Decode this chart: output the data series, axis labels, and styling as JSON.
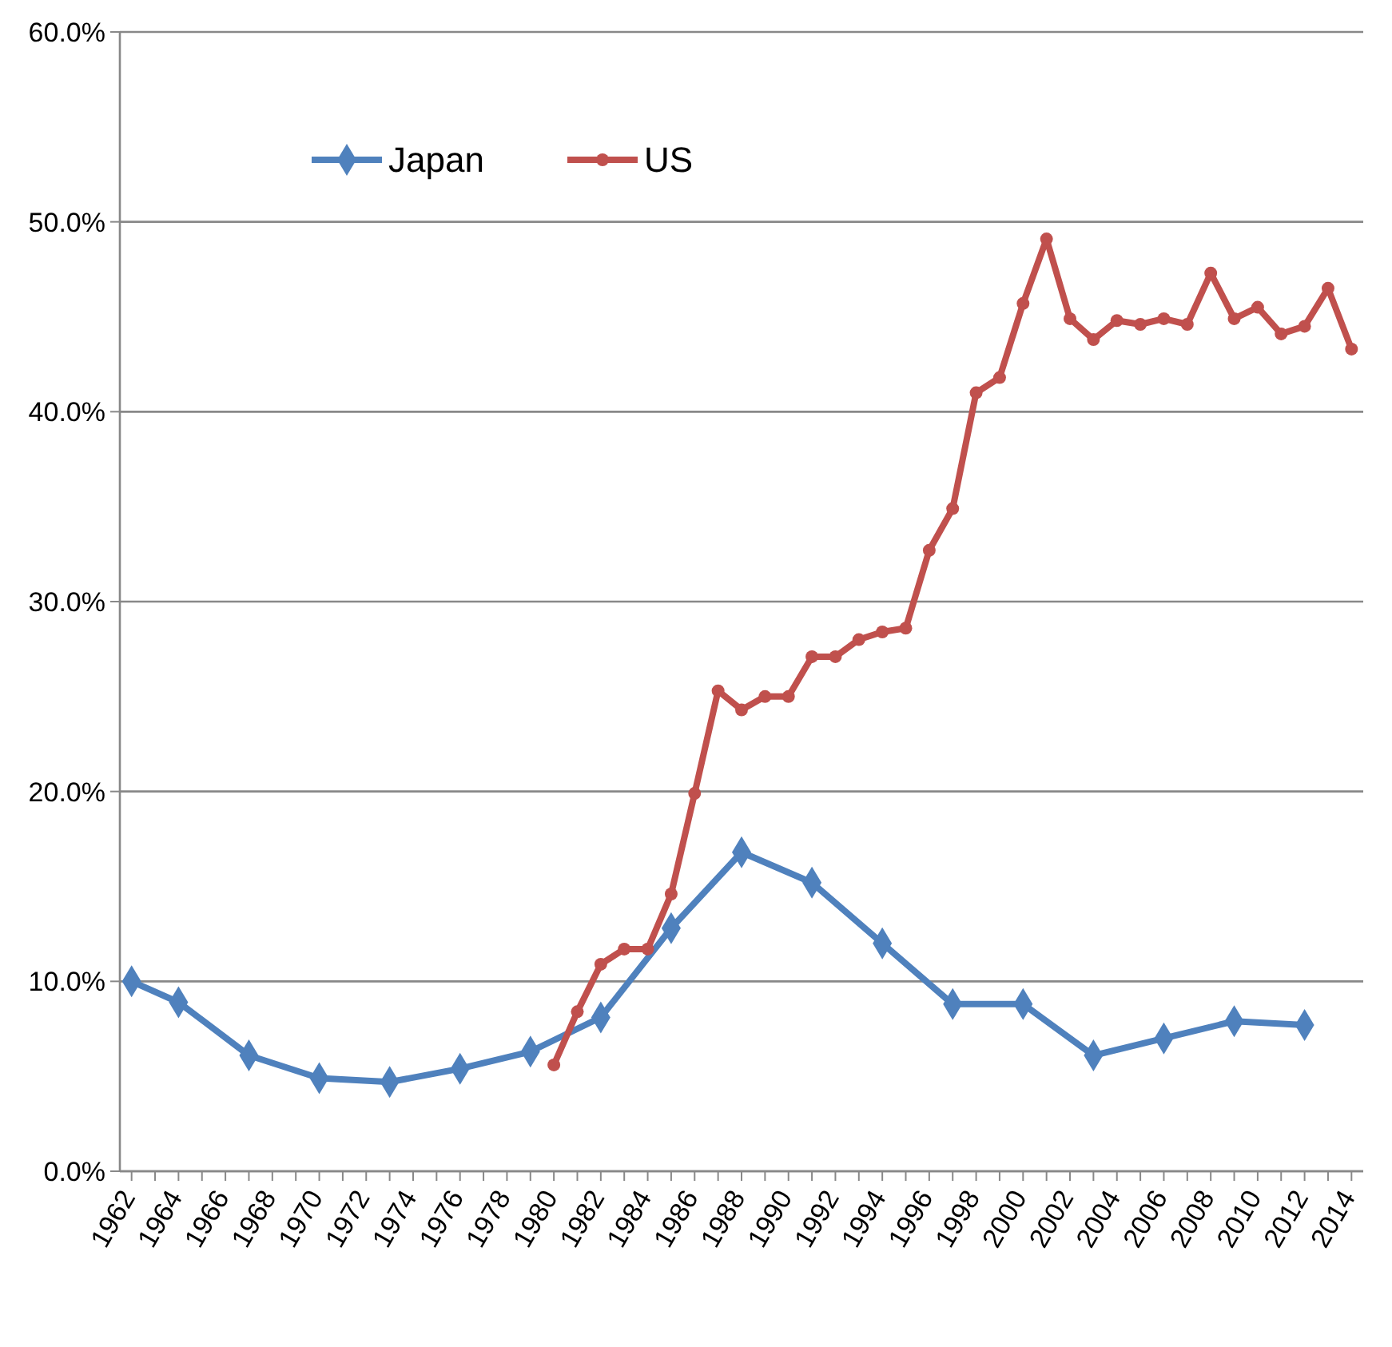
{
  "chart_data": {
    "type": "line",
    "xlim": [
      1961.5,
      2014.5
    ],
    "ylim": [
      0,
      60
    ],
    "xticks": [
      1962,
      {
        "value": 1963,
        "label": null
      },
      1964,
      {
        "value": 1965,
        "label": null
      },
      1966,
      {
        "value": 1967,
        "label": null
      },
      1968,
      {
        "value": 1969,
        "label": null
      },
      1970,
      {
        "value": 1971,
        "label": null
      },
      1972,
      {
        "value": 1973,
        "label": null
      },
      1974,
      {
        "value": 1975,
        "label": null
      },
      1976,
      {
        "value": 1977,
        "label": null
      },
      1978,
      {
        "value": 1979,
        "label": null
      },
      1980,
      {
        "value": 1981,
        "label": null
      },
      1982,
      {
        "value": 1983,
        "label": null
      },
      1984,
      {
        "value": 1985,
        "label": null
      },
      1986,
      {
        "value": 1987,
        "label": null
      },
      1988,
      {
        "value": 1989,
        "label": null
      },
      1990,
      {
        "value": 1991,
        "label": null
      },
      1992,
      {
        "value": 1993,
        "label": null
      },
      1994,
      {
        "value": 1995,
        "label": null
      },
      1996,
      {
        "value": 1997,
        "label": null
      },
      1998,
      {
        "value": 1999,
        "label": null
      },
      2000,
      {
        "value": 2001,
        "label": null
      },
      2002,
      {
        "value": 2003,
        "label": null
      },
      2004,
      {
        "value": 2005,
        "label": null
      },
      2006,
      {
        "value": 2007,
        "label": null
      },
      2008,
      {
        "value": 2009,
        "label": null
      },
      2010,
      {
        "value": 2011,
        "label": null
      },
      2012,
      {
        "value": 2013,
        "label": null
      },
      2014
    ],
    "yticks": [
      {
        "value": 0,
        "label": "0.0%"
      },
      {
        "value": 10,
        "label": "10.0%"
      },
      {
        "value": 20,
        "label": "20.0%"
      },
      {
        "value": 30,
        "label": "30.0%"
      },
      {
        "value": 40,
        "label": "40.0%"
      },
      {
        "value": 50,
        "label": "50.0%"
      },
      {
        "value": 60,
        "label": "60.0%"
      }
    ],
    "grid": "y",
    "legend": "top left",
    "line_style": "solid",
    "series": [
      {
        "name": "Japan",
        "color": "#4f81bd",
        "marker": "diamond",
        "x": [
          1962,
          1964,
          1967,
          1970,
          1973,
          1976,
          1979,
          1982,
          1985,
          1988,
          1991,
          1994,
          1997,
          2000,
          2003,
          2006,
          2009,
          2012
        ],
        "values": [
          10.0,
          8.9,
          6.1,
          4.9,
          4.7,
          5.4,
          6.3,
          8.1,
          12.8,
          16.8,
          15.2,
          12.0,
          8.8,
          8.8,
          6.1,
          7.0,
          7.9,
          7.7
        ]
      },
      {
        "name": "US",
        "color": "#c0504d",
        "marker": "circle",
        "x": [
          1980,
          1981,
          1982,
          1983,
          1984,
          1985,
          1986,
          1987,
          1988,
          1989,
          1990,
          1991,
          1992,
          1993,
          1994,
          1995,
          1996,
          1997,
          1998,
          1999,
          2000,
          2001,
          2002,
          2003,
          2004,
          2005,
          2006,
          2007,
          2008,
          2009,
          2010,
          2011,
          2012,
          2013,
          2014
        ],
        "values": [
          5.6,
          8.4,
          10.9,
          11.7,
          11.7,
          14.6,
          19.9,
          25.3,
          24.3,
          25.0,
          25.0,
          27.1,
          27.1,
          28.0,
          28.4,
          28.6,
          32.7,
          34.9,
          41.0,
          41.8,
          45.7,
          49.1,
          44.9,
          43.8,
          44.8,
          44.6,
          44.9,
          44.6,
          47.3,
          44.9,
          45.5,
          44.1,
          44.5,
          46.5,
          43.3
        ]
      }
    ]
  }
}
